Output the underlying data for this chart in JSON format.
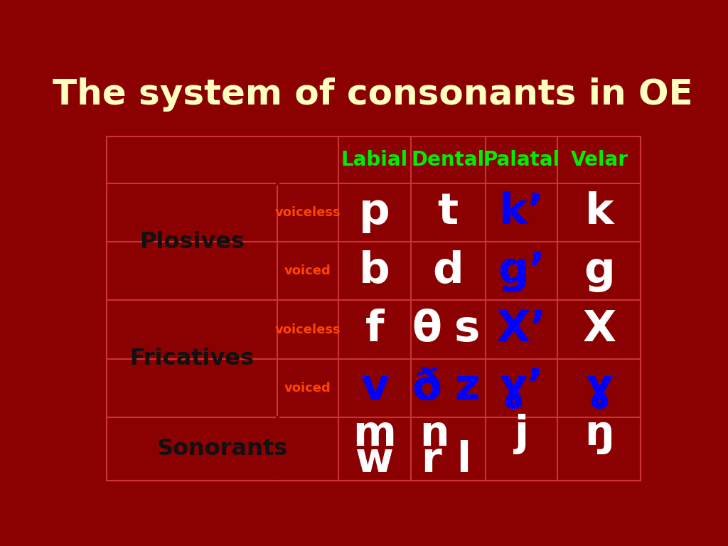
{
  "title": "The system of consonants in OE",
  "title_color": "#FFFFC0",
  "title_fontsize": 36,
  "bg_color": "#8B0000",
  "cell_border_color": "#CC3333",
  "header_labels": [
    "Labial",
    "Dental",
    "Palatal",
    "Velar"
  ],
  "header_color": "#00EE00",
  "row_label_color": "#111111",
  "voicing_color": "#FF4500",
  "plosives_voiceless": [
    "p",
    "t",
    "k’",
    "k"
  ],
  "plosives_voiced": [
    "b",
    "d",
    "g’",
    "g"
  ],
  "fricatives_voiceless_labial": "f",
  "fricatives_voiceless_dental_1": "θ",
  "fricatives_voiceless_dental_2": "s",
  "fricatives_voiceless_palatal": "X’",
  "fricatives_voiceless_velar": "X",
  "fricatives_voiced_labial": "v",
  "fricatives_voiced_dental_1": "ð",
  "fricatives_voiced_dental_2": "z",
  "fricatives_voiced_palatal": "ɣ’",
  "fricatives_voiced_velar": "ɣ",
  "sonorants_labial_1": "m",
  "sonorants_labial_2": "w",
  "sonorants_dental_1": "n",
  "sonorants_dental_2": "r",
  "sonorants_dental_3": "l",
  "sonorants_palatal": "j",
  "sonorants_velar": "ŋ",
  "plosives_voiceless_colors": [
    "white",
    "white",
    "blue",
    "white"
  ],
  "plosives_voiced_colors": [
    "white",
    "white",
    "blue",
    "white"
  ],
  "fric_voiceless_colors": [
    "white",
    "white",
    "white",
    "blue",
    "white"
  ],
  "fric_voiced_colors": [
    "blue",
    "blue",
    "blue",
    "blue",
    "blue"
  ],
  "sonorants_colors": [
    "white",
    "white",
    "white",
    "white"
  ]
}
